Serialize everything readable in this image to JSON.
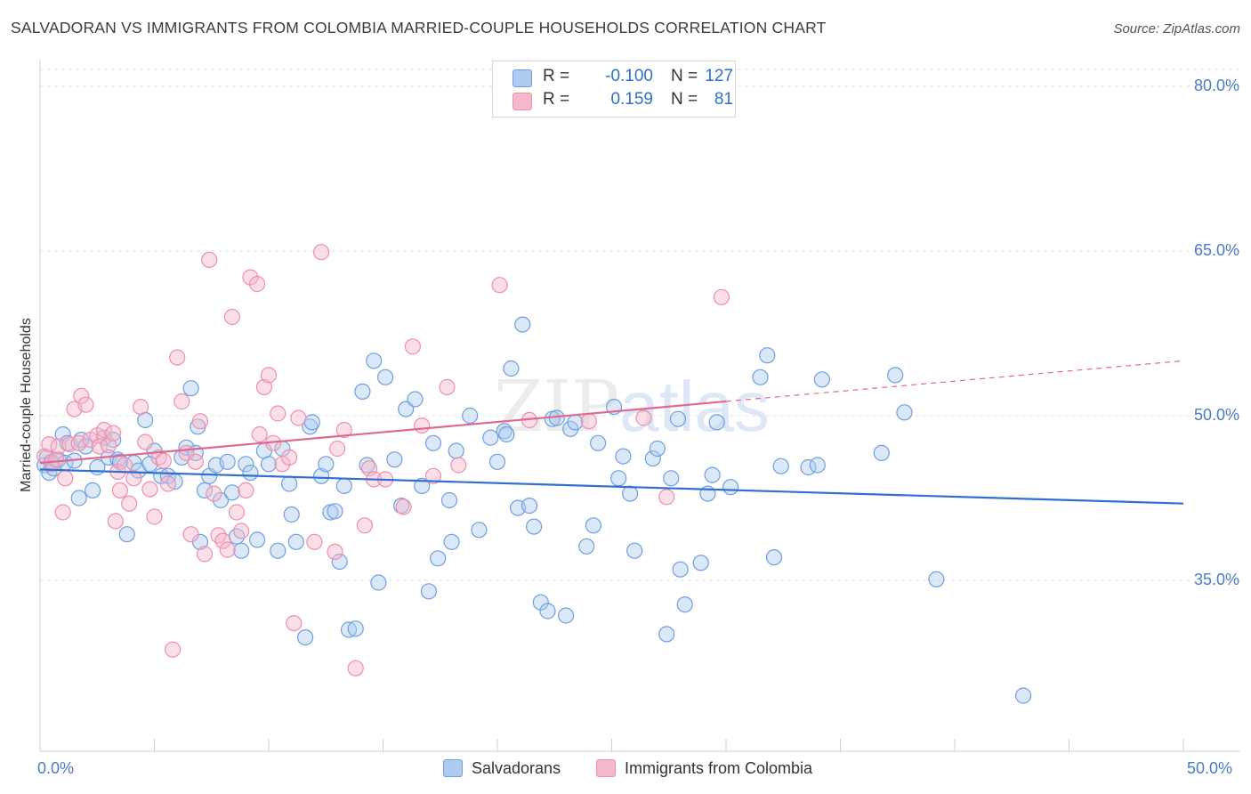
{
  "title": "SALVADORAN VS IMMIGRANTS FROM COLOMBIA MARRIED-COUPLE HOUSEHOLDS CORRELATION CHART",
  "source": "Source: ZipAtlas.com",
  "watermark": {
    "zip": "ZIP",
    "atlas": "atlas"
  },
  "legend_top": [
    {
      "r_label": "R =",
      "r_value": "-0.100",
      "n_label": "N =",
      "n_value": "127",
      "color": "#aecbf0"
    },
    {
      "r_label": "R =",
      "r_value": "0.159",
      "n_label": "N =",
      "n_value": "81",
      "color": "#f6b8cb"
    }
  ],
  "chart_data": {
    "type": "scatter",
    "title": "SALVADORAN VS IMMIGRANTS FROM COLOMBIA MARRIED-COUPLE HOUSEHOLDS CORRELATION CHART",
    "xlabel": "",
    "ylabel": "Married-couple Households",
    "xlim": [
      0,
      50
    ],
    "ylim": [
      21,
      82
    ],
    "x_tick_labels": [
      "0.0%",
      "50.0%"
    ],
    "y_ticks": [
      35,
      50,
      65,
      80
    ],
    "y_tick_labels": [
      "35.0%",
      "50.0%",
      "65.0%",
      "80.0%"
    ],
    "grid": true,
    "legend_position": "bottom",
    "series": [
      {
        "name": "Salvadorans",
        "color": "#6f9fe0",
        "fill": "#aecbf0",
        "trend": {
          "x": [
            0,
            50
          ],
          "y": [
            45.1,
            42.0
          ],
          "color": "#2f6fd0"
        },
        "points": [
          [
            0.2,
            45.5
          ],
          [
            0.3,
            46.2
          ],
          [
            0.4,
            44.8
          ],
          [
            0.5,
            45.8
          ],
          [
            0.6,
            45.2
          ],
          [
            0.8,
            46.0
          ],
          [
            1.0,
            48.3
          ],
          [
            1.1,
            45.7
          ],
          [
            1.2,
            47.5
          ],
          [
            1.5,
            45.9
          ],
          [
            1.7,
            42.5
          ],
          [
            1.8,
            47.8
          ],
          [
            2.0,
            47.2
          ],
          [
            2.3,
            43.2
          ],
          [
            2.5,
            45.3
          ],
          [
            2.8,
            48.0
          ],
          [
            3.0,
            46.2
          ],
          [
            3.2,
            47.8
          ],
          [
            3.4,
            46.0
          ],
          [
            3.5,
            45.8
          ],
          [
            3.8,
            39.2
          ],
          [
            4.1,
            45.7
          ],
          [
            4.3,
            45.0
          ],
          [
            4.6,
            49.6
          ],
          [
            4.8,
            45.6
          ],
          [
            5.0,
            46.8
          ],
          [
            5.3,
            44.5
          ],
          [
            5.6,
            44.5
          ],
          [
            5.9,
            44.0
          ],
          [
            6.2,
            46.2
          ],
          [
            6.4,
            47.1
          ],
          [
            6.6,
            52.5
          ],
          [
            6.8,
            46.6
          ],
          [
            6.9,
            49.0
          ],
          [
            7.0,
            38.5
          ],
          [
            7.2,
            43.2
          ],
          [
            7.4,
            44.5
          ],
          [
            7.7,
            45.5
          ],
          [
            7.9,
            42.3
          ],
          [
            8.2,
            45.8
          ],
          [
            8.4,
            43.0
          ],
          [
            8.6,
            39.0
          ],
          [
            8.8,
            37.7
          ],
          [
            9.0,
            45.6
          ],
          [
            9.2,
            44.8
          ],
          [
            9.5,
            38.7
          ],
          [
            9.8,
            46.8
          ],
          [
            10.0,
            45.6
          ],
          [
            10.4,
            37.7
          ],
          [
            10.6,
            47.0
          ],
          [
            10.9,
            43.8
          ],
          [
            11.0,
            41.0
          ],
          [
            11.2,
            38.5
          ],
          [
            11.6,
            29.8
          ],
          [
            11.8,
            49.0
          ],
          [
            11.9,
            49.4
          ],
          [
            12.3,
            44.5
          ],
          [
            12.5,
            45.6
          ],
          [
            12.7,
            41.2
          ],
          [
            12.9,
            41.3
          ],
          [
            13.1,
            36.7
          ],
          [
            13.3,
            43.6
          ],
          [
            13.5,
            30.5
          ],
          [
            13.8,
            30.6
          ],
          [
            14.1,
            52.2
          ],
          [
            14.3,
            45.5
          ],
          [
            14.6,
            55.0
          ],
          [
            14.8,
            34.8
          ],
          [
            15.1,
            53.5
          ],
          [
            15.5,
            46.0
          ],
          [
            15.8,
            41.8
          ],
          [
            16.0,
            50.6
          ],
          [
            16.4,
            51.5
          ],
          [
            16.7,
            43.6
          ],
          [
            17.0,
            34.0
          ],
          [
            17.2,
            47.5
          ],
          [
            17.4,
            37.0
          ],
          [
            17.9,
            42.3
          ],
          [
            18.0,
            38.5
          ],
          [
            18.2,
            46.8
          ],
          [
            18.8,
            50.0
          ],
          [
            19.2,
            39.6
          ],
          [
            19.7,
            48.0
          ],
          [
            20.0,
            45.8
          ],
          [
            20.3,
            48.6
          ],
          [
            20.4,
            48.3
          ],
          [
            20.6,
            54.3
          ],
          [
            20.9,
            41.6
          ],
          [
            21.1,
            58.3
          ],
          [
            21.4,
            41.8
          ],
          [
            21.6,
            39.9
          ],
          [
            21.9,
            33.0
          ],
          [
            22.2,
            32.2
          ],
          [
            22.4,
            49.7
          ],
          [
            22.6,
            49.8
          ],
          [
            23.0,
            31.8
          ],
          [
            23.2,
            48.8
          ],
          [
            23.4,
            49.4
          ],
          [
            23.9,
            38.1
          ],
          [
            24.2,
            40.0
          ],
          [
            24.4,
            47.5
          ],
          [
            25.1,
            50.8
          ],
          [
            25.3,
            44.3
          ],
          [
            25.5,
            46.3
          ],
          [
            25.8,
            42.9
          ],
          [
            26.0,
            37.7
          ],
          [
            26.8,
            46.1
          ],
          [
            27.0,
            47.0
          ],
          [
            27.4,
            30.1
          ],
          [
            27.6,
            44.3
          ],
          [
            27.9,
            49.7
          ],
          [
            28.0,
            36.0
          ],
          [
            28.2,
            32.8
          ],
          [
            28.9,
            36.6
          ],
          [
            29.2,
            42.9
          ],
          [
            29.4,
            44.6
          ],
          [
            29.6,
            49.4
          ],
          [
            30.2,
            43.5
          ],
          [
            31.5,
            53.5
          ],
          [
            31.8,
            55.5
          ],
          [
            32.1,
            37.1
          ],
          [
            32.4,
            45.4
          ],
          [
            33.6,
            45.3
          ],
          [
            34.0,
            45.5
          ],
          [
            34.2,
            53.3
          ],
          [
            36.8,
            46.6
          ],
          [
            37.4,
            53.7
          ],
          [
            37.8,
            50.3
          ],
          [
            39.2,
            35.1
          ],
          [
            43.0,
            24.5
          ]
        ]
      },
      {
        "name": "Immigrants from Colombia",
        "color": "#ee8fac",
        "fill": "#f6b8cb",
        "trend": {
          "x": [
            0,
            30
          ],
          "y": [
            45.7,
            51.3
          ],
          "color": "#e06890",
          "dashed_to": [
            50,
            55.0
          ]
        },
        "points": [
          [
            0.2,
            46.3
          ],
          [
            0.4,
            47.4
          ],
          [
            0.5,
            45.6
          ],
          [
            0.7,
            46.0
          ],
          [
            0.8,
            47.2
          ],
          [
            1.0,
            41.2
          ],
          [
            1.1,
            44.3
          ],
          [
            1.3,
            47.4
          ],
          [
            1.5,
            50.6
          ],
          [
            1.7,
            47.5
          ],
          [
            1.8,
            51.8
          ],
          [
            2.0,
            51.0
          ],
          [
            2.2,
            47.8
          ],
          [
            2.5,
            48.2
          ],
          [
            2.6,
            47.2
          ],
          [
            2.8,
            48.7
          ],
          [
            3.0,
            47.3
          ],
          [
            3.2,
            48.4
          ],
          [
            3.3,
            40.4
          ],
          [
            3.4,
            44.9
          ],
          [
            3.5,
            43.2
          ],
          [
            3.7,
            45.5
          ],
          [
            3.9,
            42.0
          ],
          [
            4.1,
            44.3
          ],
          [
            4.4,
            50.8
          ],
          [
            4.6,
            47.6
          ],
          [
            4.8,
            43.3
          ],
          [
            5.0,
            40.8
          ],
          [
            5.2,
            46.2
          ],
          [
            5.4,
            45.9
          ],
          [
            5.6,
            43.8
          ],
          [
            5.8,
            28.7
          ],
          [
            6.0,
            55.3
          ],
          [
            6.2,
            51.3
          ],
          [
            6.4,
            46.6
          ],
          [
            6.6,
            39.2
          ],
          [
            6.8,
            45.8
          ],
          [
            7.0,
            49.5
          ],
          [
            7.2,
            37.4
          ],
          [
            7.4,
            64.2
          ],
          [
            7.6,
            42.9
          ],
          [
            7.8,
            39.1
          ],
          [
            8.0,
            38.6
          ],
          [
            8.2,
            37.8
          ],
          [
            8.4,
            59.0
          ],
          [
            8.6,
            41.2
          ],
          [
            8.8,
            39.5
          ],
          [
            9.0,
            43.2
          ],
          [
            9.2,
            62.6
          ],
          [
            9.5,
            62.0
          ],
          [
            9.6,
            48.3
          ],
          [
            9.8,
            52.6
          ],
          [
            10.0,
            53.7
          ],
          [
            10.2,
            47.5
          ],
          [
            10.4,
            50.2
          ],
          [
            10.6,
            45.6
          ],
          [
            10.9,
            46.2
          ],
          [
            11.1,
            31.1
          ],
          [
            11.3,
            49.8
          ],
          [
            12.0,
            38.5
          ],
          [
            12.3,
            64.9
          ],
          [
            12.9,
            37.6
          ],
          [
            13.0,
            47.0
          ],
          [
            13.3,
            48.7
          ],
          [
            13.8,
            27.0
          ],
          [
            14.2,
            40.0
          ],
          [
            14.4,
            45.2
          ],
          [
            14.6,
            44.2
          ],
          [
            15.1,
            44.2
          ],
          [
            15.9,
            41.7
          ],
          [
            16.3,
            56.3
          ],
          [
            16.7,
            49.1
          ],
          [
            17.2,
            44.5
          ],
          [
            17.8,
            52.6
          ],
          [
            18.3,
            45.5
          ],
          [
            20.1,
            61.9
          ],
          [
            21.4,
            49.6
          ],
          [
            24.0,
            49.5
          ],
          [
            26.4,
            49.8
          ],
          [
            27.4,
            42.6
          ],
          [
            29.8,
            60.8
          ]
        ]
      }
    ]
  },
  "legend_bottom": [
    {
      "label": "Salvadorans",
      "color": "#aecbf0"
    },
    {
      "label": "Immigrants from Colombia",
      "color": "#f6b8cb"
    }
  ]
}
